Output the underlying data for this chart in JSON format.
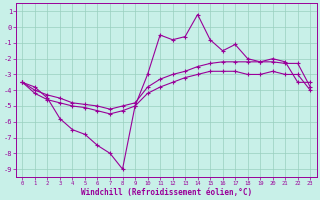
{
  "xlabel": "Windchill (Refroidissement éolien,°C)",
  "x": [
    0,
    1,
    2,
    3,
    4,
    5,
    6,
    7,
    8,
    9,
    10,
    11,
    12,
    13,
    14,
    15,
    16,
    17,
    18,
    19,
    20,
    21,
    22,
    23
  ],
  "line_data": [
    [
      -3.5,
      -3.8,
      -4.5,
      -5.8,
      -6.5,
      -6.8,
      -7.5,
      -8.0,
      -9.0,
      -5.0,
      -3.0,
      -0.5,
      -0.8,
      -0.6,
      0.8,
      -0.8,
      -1.5,
      -1.1,
      -2.0,
      -2.2,
      -2.0,
      -2.2,
      -3.5,
      -3.5
    ],
    [
      -3.5,
      -4.0,
      -4.3,
      -4.5,
      -4.8,
      -4.9,
      -5.0,
      -5.2,
      -5.0,
      -4.8,
      -3.8,
      -3.3,
      -3.0,
      -2.8,
      -2.5,
      -2.3,
      -2.2,
      -2.2,
      -2.2,
      -2.2,
      -2.2,
      -2.3,
      -2.3,
      -3.8
    ],
    [
      -3.5,
      -4.2,
      -4.6,
      -4.8,
      -5.0,
      -5.1,
      -5.3,
      -5.5,
      -5.3,
      -5.0,
      -4.2,
      -3.8,
      -3.5,
      -3.2,
      -3.0,
      -2.8,
      -2.8,
      -2.8,
      -3.0,
      -3.0,
      -2.8,
      -3.0,
      -3.0,
      -4.0
    ]
  ],
  "line_color": "#990099",
  "marker": "+",
  "bg_color": "#c8f0e8",
  "grid_color": "#9acfbf",
  "ylim": [
    -9.5,
    1.5
  ],
  "xlim": [
    -0.5,
    23.5
  ],
  "yticks": [
    1,
    0,
    -1,
    -2,
    -3,
    -4,
    -5,
    -6,
    -7,
    -8,
    -9
  ],
  "xticks": [
    0,
    1,
    2,
    3,
    4,
    5,
    6,
    7,
    8,
    9,
    10,
    11,
    12,
    13,
    14,
    15,
    16,
    17,
    18,
    19,
    20,
    21,
    22,
    23
  ]
}
